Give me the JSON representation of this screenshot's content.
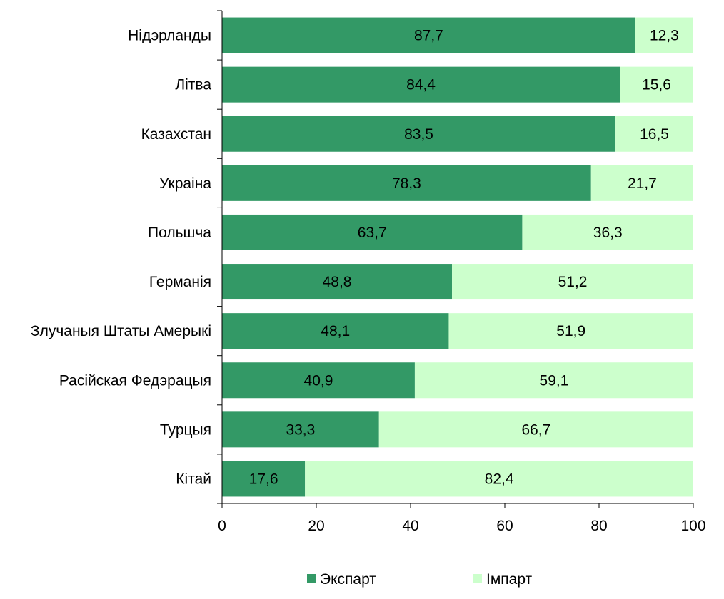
{
  "chart_data": {
    "type": "bar",
    "orientation": "horizontal",
    "stacked": true,
    "categories": [
      "Нідэрланды",
      "Літва",
      "Казахстан",
      "Украіна",
      "Польшча",
      "Германія",
      "Злучаныя Штаты Амерыкі",
      "Расійская Федэрацыя",
      "Турцыя",
      "Кітай"
    ],
    "series": [
      {
        "name": "Экспарт",
        "color": "#339966",
        "values": [
          87.7,
          84.4,
          83.5,
          78.3,
          63.7,
          48.8,
          48.1,
          40.9,
          33.3,
          17.6
        ]
      },
      {
        "name": "Імпарт",
        "color": "#ccffcc",
        "values": [
          12.3,
          15.6,
          16.5,
          21.7,
          36.3,
          51.2,
          51.9,
          59.1,
          66.7,
          82.4
        ]
      }
    ],
    "data_labels": [
      [
        "87,7",
        "84,4",
        "83,5",
        "78,3",
        "63,7",
        "48,8",
        "48,1",
        "40,9",
        "33,3",
        "17,6"
      ],
      [
        "12,3",
        "15,6",
        "16,5",
        "21,7",
        "36,3",
        "51,2",
        "51,9",
        "59,1",
        "66,7",
        "82,4"
      ]
    ],
    "xlim": [
      0,
      100
    ],
    "x_ticks": [
      0,
      20,
      40,
      60,
      80,
      100
    ],
    "x_tick_labels": [
      "0",
      "20",
      "40",
      "60",
      "80",
      "100"
    ],
    "title": "",
    "xlabel": "",
    "ylabel": "",
    "grid": false,
    "legend_position": "bottom"
  }
}
